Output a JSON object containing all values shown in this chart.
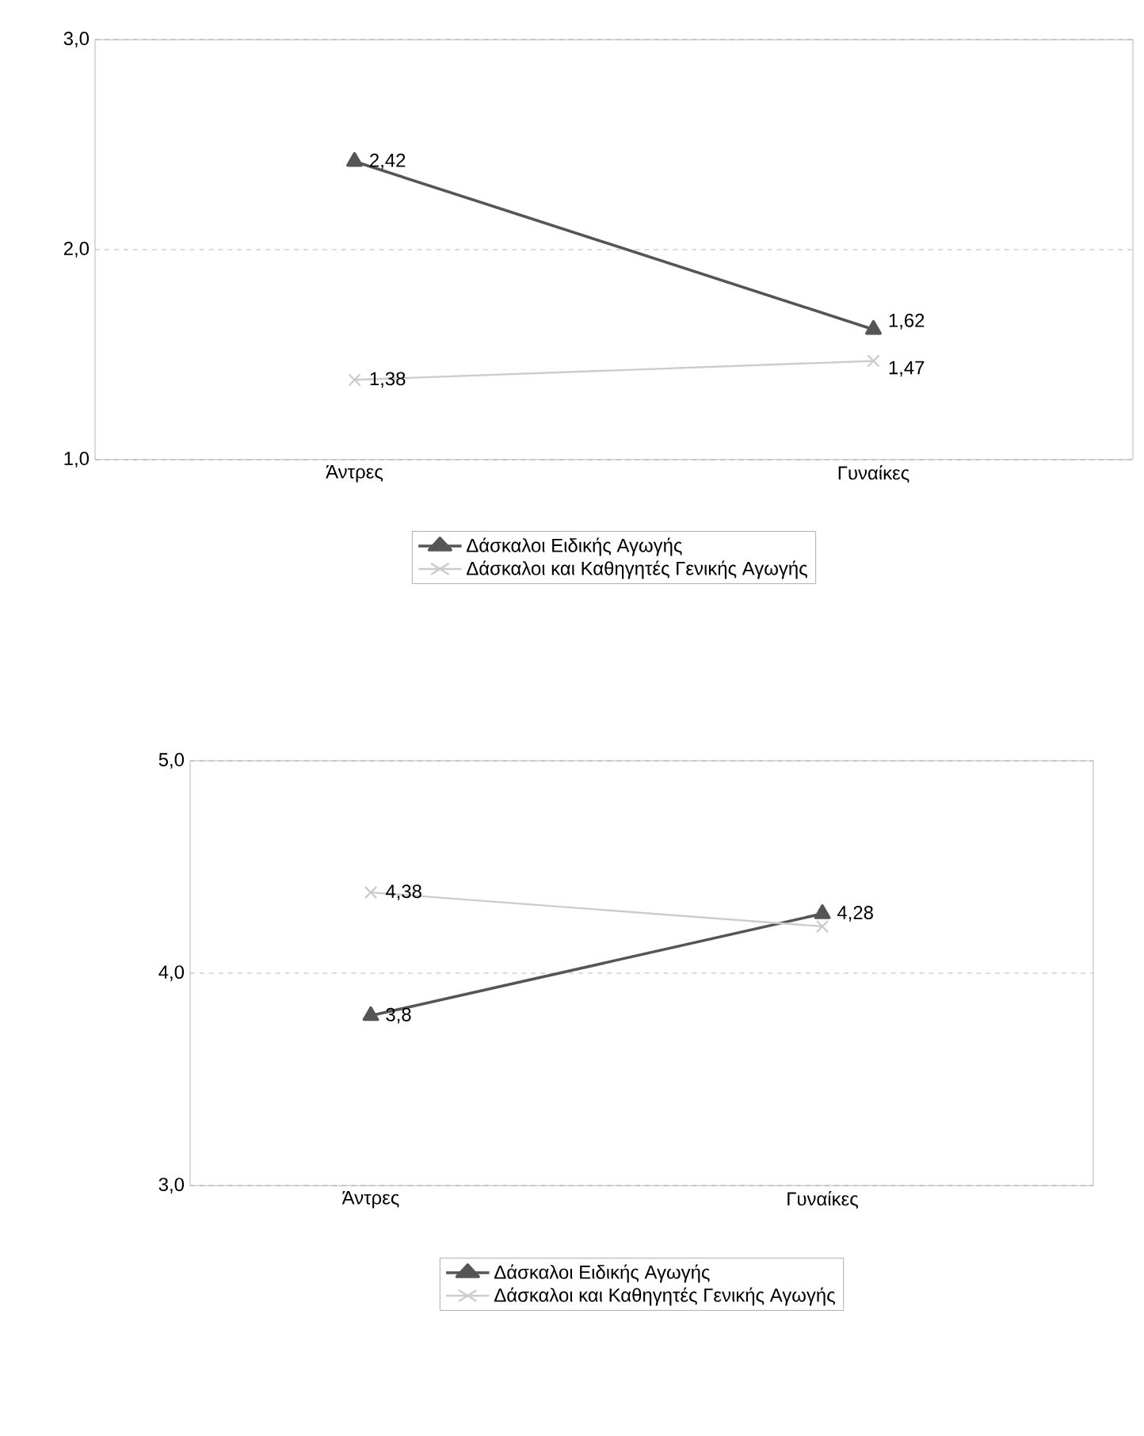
{
  "chart_data": [
    {
      "type": "line",
      "categories": [
        "Άντρες",
        "Γυναίκες"
      ],
      "ylim": [
        1,
        3
      ],
      "yticks": [
        {
          "value": 1,
          "label": "1,0"
        },
        {
          "value": 2,
          "label": "2,0"
        },
        {
          "value": 3,
          "label": "3,0"
        }
      ],
      "grid": "y",
      "legend": "bottom",
      "series": [
        {
          "name": "Δάσκαλοι Ειδικής Αγωγής",
          "color": "#555555",
          "marker": "triangle",
          "values": [
            2.42,
            1.62
          ],
          "value_labels": [
            "2,42",
            "1,62"
          ]
        },
        {
          "name": "Δάσκαλοι και Καθηγητές Γενικής Αγωγής",
          "color": "#cccccc",
          "marker": "cross",
          "values": [
            1.38,
            1.47
          ],
          "value_labels": [
            "1,38",
            "1,47"
          ]
        }
      ]
    },
    {
      "type": "line",
      "categories": [
        "Άντρες",
        "Γυναίκες"
      ],
      "ylim": [
        3,
        5
      ],
      "yticks": [
        {
          "value": 3,
          "label": "3,0"
        },
        {
          "value": 4,
          "label": "4,0"
        },
        {
          "value": 5,
          "label": "5,0"
        }
      ],
      "grid": "y",
      "legend": "bottom",
      "series": [
        {
          "name": "Δάσκαλοι Ειδικής Αγωγής",
          "color": "#555555",
          "marker": "triangle",
          "values": [
            3.8,
            4.28
          ],
          "value_labels": [
            "3,8",
            "4,28"
          ]
        },
        {
          "name": "Δάσκαλοι και Καθηγητές Γενικής Αγωγής",
          "color": "#cccccc",
          "marker": "cross",
          "values": [
            4.38,
            4.22
          ],
          "value_labels": [
            "4,38",
            null
          ]
        }
      ]
    }
  ]
}
